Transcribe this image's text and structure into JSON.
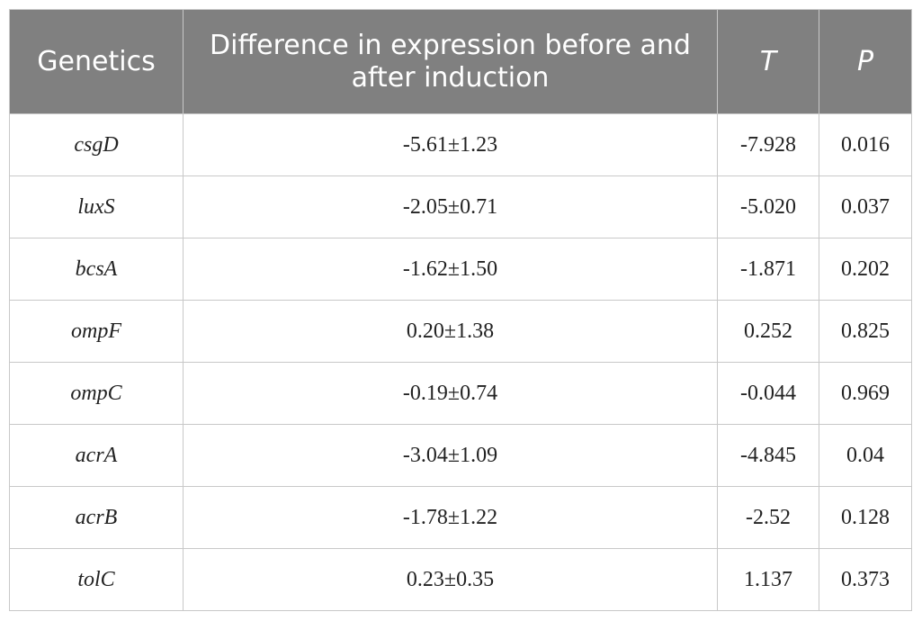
{
  "table": {
    "header": [
      "Genetics",
      "Difference in expression before and after induction",
      "T",
      "P"
    ],
    "rows": [
      [
        "csgD",
        "-5.61±1.23",
        "-7.928",
        "0.016"
      ],
      [
        "luxS",
        "-2.05±0.71",
        "-5.020",
        "0.037"
      ],
      [
        "bcsA",
        "-1.62±1.50",
        "-1.871",
        "0.202"
      ],
      [
        "ompF",
        "0.20±1.38",
        "0.252",
        "0.825"
      ],
      [
        "ompC",
        "-0.19±0.74",
        "-0.044",
        "0.969"
      ],
      [
        "acrA",
        "-3.04±1.09",
        "-4.845",
        "0.04"
      ],
      [
        "acrB",
        "-1.78±1.22",
        "-2.52",
        "0.128"
      ],
      [
        "tolC",
        "0.23±0.35",
        "1.137",
        "0.373"
      ]
    ]
  }
}
